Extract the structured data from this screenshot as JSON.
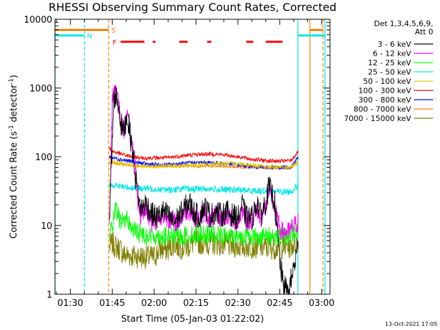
{
  "chart_data": {
    "type": "line",
    "title": "RHESSI Observing Summary Count Rates, Corrected",
    "xlabel": "Start Time (05-Jan-03 01:22:02)",
    "ylabel": "Corrected Count Rate (s",
    "ylabel_sup1": "-1",
    "ylabel_mid": " detector",
    "ylabel_sup2": "-1",
    "ylabel_end": ")",
    "yscale": "log",
    "ylim": [
      1,
      10000
    ],
    "xlim_minutes": [
      84.5,
      183
    ],
    "x_ticks": [
      {
        "t": 90,
        "label": "01:30"
      },
      {
        "t": 105,
        "label": "01:45"
      },
      {
        "t": 120,
        "label": "02:00"
      },
      {
        "t": 135,
        "label": "02:15"
      },
      {
        "t": 150,
        "label": "02:30"
      },
      {
        "t": 165,
        "label": "02:45"
      },
      {
        "t": 180,
        "label": "03:00"
      }
    ],
    "y_ticks": [
      {
        "v": 1,
        "label": "1"
      },
      {
        "v": 10,
        "label": "10"
      },
      {
        "v": 100,
        "label": "100"
      },
      {
        "v": 1000,
        "label": "1000"
      },
      {
        "v": 10000,
        "label": "10000"
      }
    ],
    "legend_header": [
      "Det 1,3,4,5,6,9,",
      "Att 0"
    ],
    "flags": {
      "S": {
        "label": "S",
        "color": "#ff7f00",
        "level": 7000,
        "segments": [
          [
            84.5,
            103.7
          ],
          [
            175.8,
            180.5
          ]
        ]
      },
      "N": {
        "label": "N",
        "color": "#00e5e5",
        "level": 5800,
        "segments": [
          [
            84.5,
            95
          ],
          [
            171.5,
            181.2
          ]
        ]
      },
      "F": {
        "label": "F",
        "color": "#ff0000",
        "level": 4700,
        "segments": [
          [
            108,
            116.5
          ],
          [
            119.5,
            120.5
          ],
          [
            129,
            132
          ],
          [
            139,
            140.5
          ],
          [
            153,
            155.5
          ],
          [
            160,
            166
          ]
        ]
      }
    },
    "vlines": [
      {
        "t": 84.5,
        "color": "#00e5e5",
        "dash": false
      },
      {
        "t": 95.0,
        "color": "#00e5e5",
        "dash": true
      },
      {
        "t": 103.7,
        "color": "#ff7f00",
        "dash": true
      },
      {
        "t": 171.5,
        "color": "#00e5e5",
        "dash": false
      },
      {
        "t": 175.8,
        "color": "#ff7f00",
        "dash": false
      },
      {
        "t": 181.2,
        "color": "#00e5e5",
        "dash": false
      },
      {
        "t": 180.5,
        "color": "#ff7f00",
        "dash": true
      }
    ],
    "series": [
      {
        "name": "3 - 6 keV",
        "color": "#000000",
        "noise": 0.18,
        "points": [
          [
            104,
            15
          ],
          [
            105.5,
            700
          ],
          [
            106.2,
            800
          ],
          [
            107,
            620
          ],
          [
            108.2,
            280
          ],
          [
            109,
            230
          ],
          [
            110,
            380
          ],
          [
            110.6,
            330
          ],
          [
            111.5,
            200
          ],
          [
            113.5,
            45
          ],
          [
            115,
            17
          ],
          [
            117,
            21
          ],
          [
            119,
            15
          ],
          [
            121,
            13
          ],
          [
            123,
            16
          ],
          [
            125,
            14
          ],
          [
            127,
            11
          ],
          [
            129,
            14
          ],
          [
            131,
            18
          ],
          [
            132.5,
            22
          ],
          [
            134,
            16
          ],
          [
            136,
            13
          ],
          [
            138,
            19
          ],
          [
            140,
            14
          ],
          [
            142,
            16
          ],
          [
            144,
            14
          ],
          [
            146,
            16
          ],
          [
            148,
            14
          ],
          [
            150,
            13
          ],
          [
            151.5,
            20
          ],
          [
            153,
            13
          ],
          [
            155,
            13
          ],
          [
            157,
            22
          ],
          [
            158,
            14
          ],
          [
            160,
            22
          ],
          [
            161,
            36
          ],
          [
            162,
            30
          ],
          [
            163,
            24
          ],
          [
            164,
            8
          ],
          [
            165,
            3
          ],
          [
            166,
            1.5
          ],
          [
            168,
            1
          ],
          [
            170,
            2.5
          ],
          [
            171.5,
            5
          ]
        ]
      },
      {
        "name": "6 - 12 keV",
        "color": "#ff00ff",
        "noise": 0.15,
        "points": [
          [
            104,
            14
          ],
          [
            105,
            700
          ],
          [
            106,
            1100
          ],
          [
            107,
            800
          ],
          [
            108,
            320
          ],
          [
            109,
            230
          ],
          [
            110,
            350
          ],
          [
            110.6,
            330
          ],
          [
            111.5,
            190
          ],
          [
            113,
            100
          ],
          [
            114,
            26
          ],
          [
            115,
            14
          ],
          [
            117,
            18
          ],
          [
            119,
            11
          ],
          [
            121,
            12
          ],
          [
            123,
            14
          ],
          [
            125,
            13
          ],
          [
            127,
            11
          ],
          [
            129,
            12
          ],
          [
            131,
            16
          ],
          [
            132.5,
            17
          ],
          [
            134,
            14
          ],
          [
            136,
            12
          ],
          [
            138,
            16
          ],
          [
            140,
            12
          ],
          [
            142,
            14
          ],
          [
            144,
            13
          ],
          [
            146,
            14
          ],
          [
            148,
            12
          ],
          [
            150,
            11
          ],
          [
            151.5,
            17
          ],
          [
            153,
            12
          ],
          [
            155,
            12
          ],
          [
            157,
            17
          ],
          [
            158,
            12
          ],
          [
            160,
            19
          ],
          [
            161,
            30
          ],
          [
            162,
            26
          ],
          [
            163,
            20
          ],
          [
            164,
            12
          ],
          [
            165,
            9
          ],
          [
            166,
            8
          ],
          [
            168,
            8
          ],
          [
            170,
            10
          ],
          [
            171.5,
            11
          ]
        ]
      },
      {
        "name": "12 - 25 keV",
        "color": "#00ff00",
        "noise": 0.14,
        "points": [
          [
            104,
            8
          ],
          [
            105,
            9
          ],
          [
            106,
            17
          ],
          [
            107,
            14
          ],
          [
            108,
            11
          ],
          [
            110,
            13
          ],
          [
            112,
            9
          ],
          [
            114,
            8
          ],
          [
            116,
            7.5
          ],
          [
            118,
            7
          ],
          [
            120,
            7
          ],
          [
            125,
            7
          ],
          [
            130,
            7
          ],
          [
            135,
            7.5
          ],
          [
            140,
            7.5
          ],
          [
            145,
            7
          ],
          [
            150,
            7
          ],
          [
            155,
            7
          ],
          [
            160,
            7
          ],
          [
            165,
            7
          ],
          [
            168,
            7
          ],
          [
            170,
            8
          ],
          [
            171.5,
            9
          ]
        ]
      },
      {
        "name": "25 - 50 keV",
        "color": "#00e5e5",
        "noise": 0.05,
        "points": [
          [
            104,
            40
          ],
          [
            106,
            38
          ],
          [
            110,
            36
          ],
          [
            115,
            35
          ],
          [
            120,
            34
          ],
          [
            125,
            33
          ],
          [
            130,
            34
          ],
          [
            135,
            34
          ],
          [
            140,
            34
          ],
          [
            145,
            33
          ],
          [
            150,
            33
          ],
          [
            155,
            32
          ],
          [
            160,
            32
          ],
          [
            165,
            31
          ],
          [
            169,
            31
          ],
          [
            170.5,
            36
          ],
          [
            171.5,
            38
          ]
        ]
      },
      {
        "name": "50 - 100 keV",
        "color": "#e5cc00",
        "noise": 0.03,
        "points": [
          [
            104,
            85
          ],
          [
            108,
            80
          ],
          [
            112,
            76
          ],
          [
            116,
            72
          ],
          [
            120,
            72
          ],
          [
            125,
            73
          ],
          [
            130,
            75
          ],
          [
            135,
            76
          ],
          [
            140,
            78
          ],
          [
            145,
            80
          ],
          [
            150,
            80
          ],
          [
            155,
            76
          ],
          [
            160,
            72
          ],
          [
            165,
            70
          ],
          [
            169,
            70
          ],
          [
            170.5,
            76
          ],
          [
            171.5,
            82
          ]
        ]
      },
      {
        "name": "100 - 300 keV",
        "color": "#ff0000",
        "noise": 0.03,
        "points": [
          [
            104,
            130
          ],
          [
            105,
            120
          ],
          [
            108,
            110
          ],
          [
            112,
            100
          ],
          [
            116,
            96
          ],
          [
            120,
            96
          ],
          [
            125,
            97
          ],
          [
            130,
            103
          ],
          [
            135,
            108
          ],
          [
            140,
            110
          ],
          [
            145,
            107
          ],
          [
            150,
            100
          ],
          [
            155,
            92
          ],
          [
            160,
            88
          ],
          [
            165,
            86
          ],
          [
            169,
            88
          ],
          [
            170.5,
            105
          ],
          [
            171.5,
            118
          ]
        ]
      },
      {
        "name": "300 - 800 keV",
        "color": "#0000ff",
        "noise": 0.03,
        "points": [
          [
            104,
            100
          ],
          [
            106,
            95
          ],
          [
            110,
            88
          ],
          [
            114,
            82
          ],
          [
            118,
            78
          ],
          [
            122,
            76
          ],
          [
            126,
            77
          ],
          [
            130,
            80
          ],
          [
            135,
            82
          ],
          [
            140,
            82
          ],
          [
            145,
            80
          ],
          [
            150,
            76
          ],
          [
            155,
            72
          ],
          [
            160,
            70
          ],
          [
            165,
            70
          ],
          [
            169,
            71
          ],
          [
            170.5,
            88
          ],
          [
            171.5,
            98
          ]
        ]
      },
      {
        "name": "800 - 7000 keV",
        "color": "#ff7f00",
        "noise": 0.02,
        "points": [
          [
            104,
            82
          ],
          [
            106,
            80
          ],
          [
            110,
            76
          ],
          [
            115,
            74
          ],
          [
            120,
            73
          ],
          [
            125,
            73
          ],
          [
            130,
            73
          ],
          [
            135,
            73
          ],
          [
            140,
            73
          ],
          [
            145,
            72
          ],
          [
            150,
            71
          ],
          [
            155,
            70
          ],
          [
            160,
            69
          ],
          [
            165,
            69
          ],
          [
            169,
            69
          ],
          [
            170.5,
            80
          ],
          [
            171.5,
            88
          ]
        ]
      },
      {
        "name": "7000 - 15000 keV",
        "color": "#7f7f00",
        "noise": 0.18,
        "points": [
          [
            104,
            5
          ],
          [
            105,
            5.5
          ],
          [
            106,
            5
          ],
          [
            108,
            4.5
          ],
          [
            109,
            3.8
          ],
          [
            110,
            3.7
          ],
          [
            113,
            3.6
          ],
          [
            116,
            3.5
          ],
          [
            120,
            3.5
          ],
          [
            122,
            4.5
          ],
          [
            125,
            4.5
          ],
          [
            127,
            5.5
          ],
          [
            129,
            4.8
          ],
          [
            132,
            5
          ],
          [
            135,
            5.8
          ],
          [
            138,
            5.5
          ],
          [
            142,
            5.5
          ],
          [
            146,
            5.2
          ],
          [
            150,
            5
          ],
          [
            155,
            5
          ],
          [
            160,
            4.8
          ],
          [
            165,
            4.8
          ],
          [
            169,
            5
          ],
          [
            171.5,
            6
          ]
        ]
      }
    ]
  },
  "footer": {
    "date": "13-Oct-2021 17:05"
  }
}
